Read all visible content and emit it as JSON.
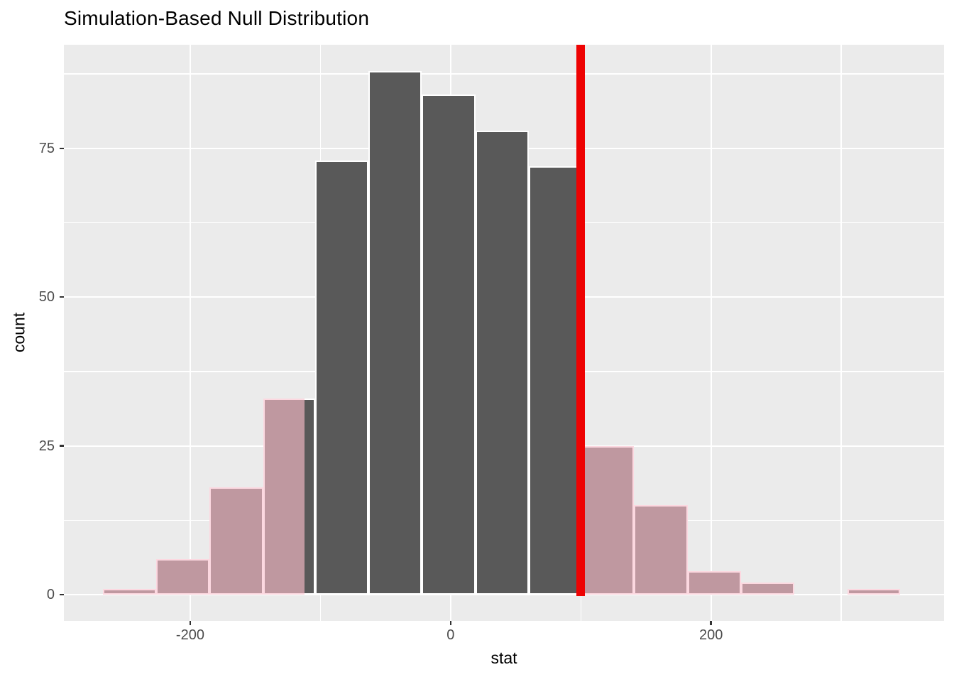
{
  "chart_data": {
    "type": "histogram",
    "title": "Simulation-Based Null Distribution",
    "xlabel": "stat",
    "ylabel": "count",
    "x_ticks": [
      -200,
      0,
      200
    ],
    "x_minor_gridlines": [
      -100,
      100,
      300
    ],
    "y_ticks": [
      0,
      25,
      50,
      75
    ],
    "y_minor_gridlines": [
      12.5,
      37.5,
      62.5,
      87.5
    ],
    "x_domain": [
      -297,
      379
    ],
    "y_domain": [
      -4.4,
      92.4
    ],
    "bin_edges": [
      -267,
      -226,
      -185,
      -144,
      -104,
      -63,
      -22,
      19,
      60,
      100,
      141,
      182,
      223,
      264,
      305,
      345
    ],
    "counts": [
      1,
      6,
      18,
      33,
      73,
      88,
      84,
      78,
      72,
      25,
      15,
      4,
      2,
      0,
      1
    ],
    "shaded_tails": {
      "left_cutoff": -112,
      "right_cutoff": 100
    },
    "observed_stat": 100,
    "grid": "on",
    "legend": "none",
    "colors": {
      "bar_fill": "#595959",
      "bar_border": "#FFFFFF",
      "shaded_fill": "#BF98A0",
      "shaded_border": "#FCD8E0",
      "observed_line": "#EE0202",
      "panel_bg": "#EBEBEB",
      "gridline": "#FFFFFF",
      "tick_label": "#4D4D4D",
      "axis_tick": "#333333",
      "text": "#000000"
    }
  }
}
